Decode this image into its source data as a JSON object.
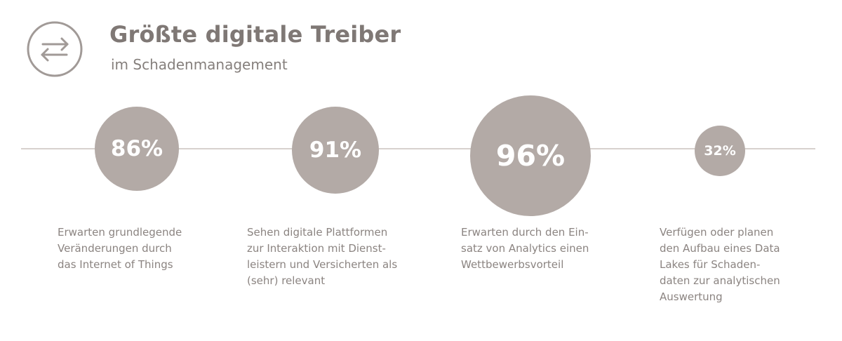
{
  "header": {
    "icon": "exchange-arrows-icon",
    "title": "Größte digitale Treiber",
    "subtitle": "im Schadenmanagement"
  },
  "colors": {
    "circle_fill": "#b3aaa6",
    "text": "#8b8481",
    "line": "#d7d1ce"
  },
  "stats": [
    {
      "value": "86%",
      "lines": [
        "Erwarten grundlegende",
        "Veränderungen durch",
        "das Internet of Things"
      ]
    },
    {
      "value": "91%",
      "lines": [
        "Sehen digitale Plattformen",
        "zur Interaktion mit Dienst-",
        "leistern und Versicherten als",
        "(sehr) relevant"
      ]
    },
    {
      "value": "96%",
      "lines": [
        "Erwarten durch den Ein-",
        "satz von Analytics einen",
        "Wettbewerbsvorteil"
      ]
    },
    {
      "value": "32%",
      "lines": [
        "Verfügen oder planen",
        "den Aufbau eines Data",
        "Lakes für Schaden-",
        "daten zur analytischen",
        "Auswertung"
      ]
    }
  ]
}
